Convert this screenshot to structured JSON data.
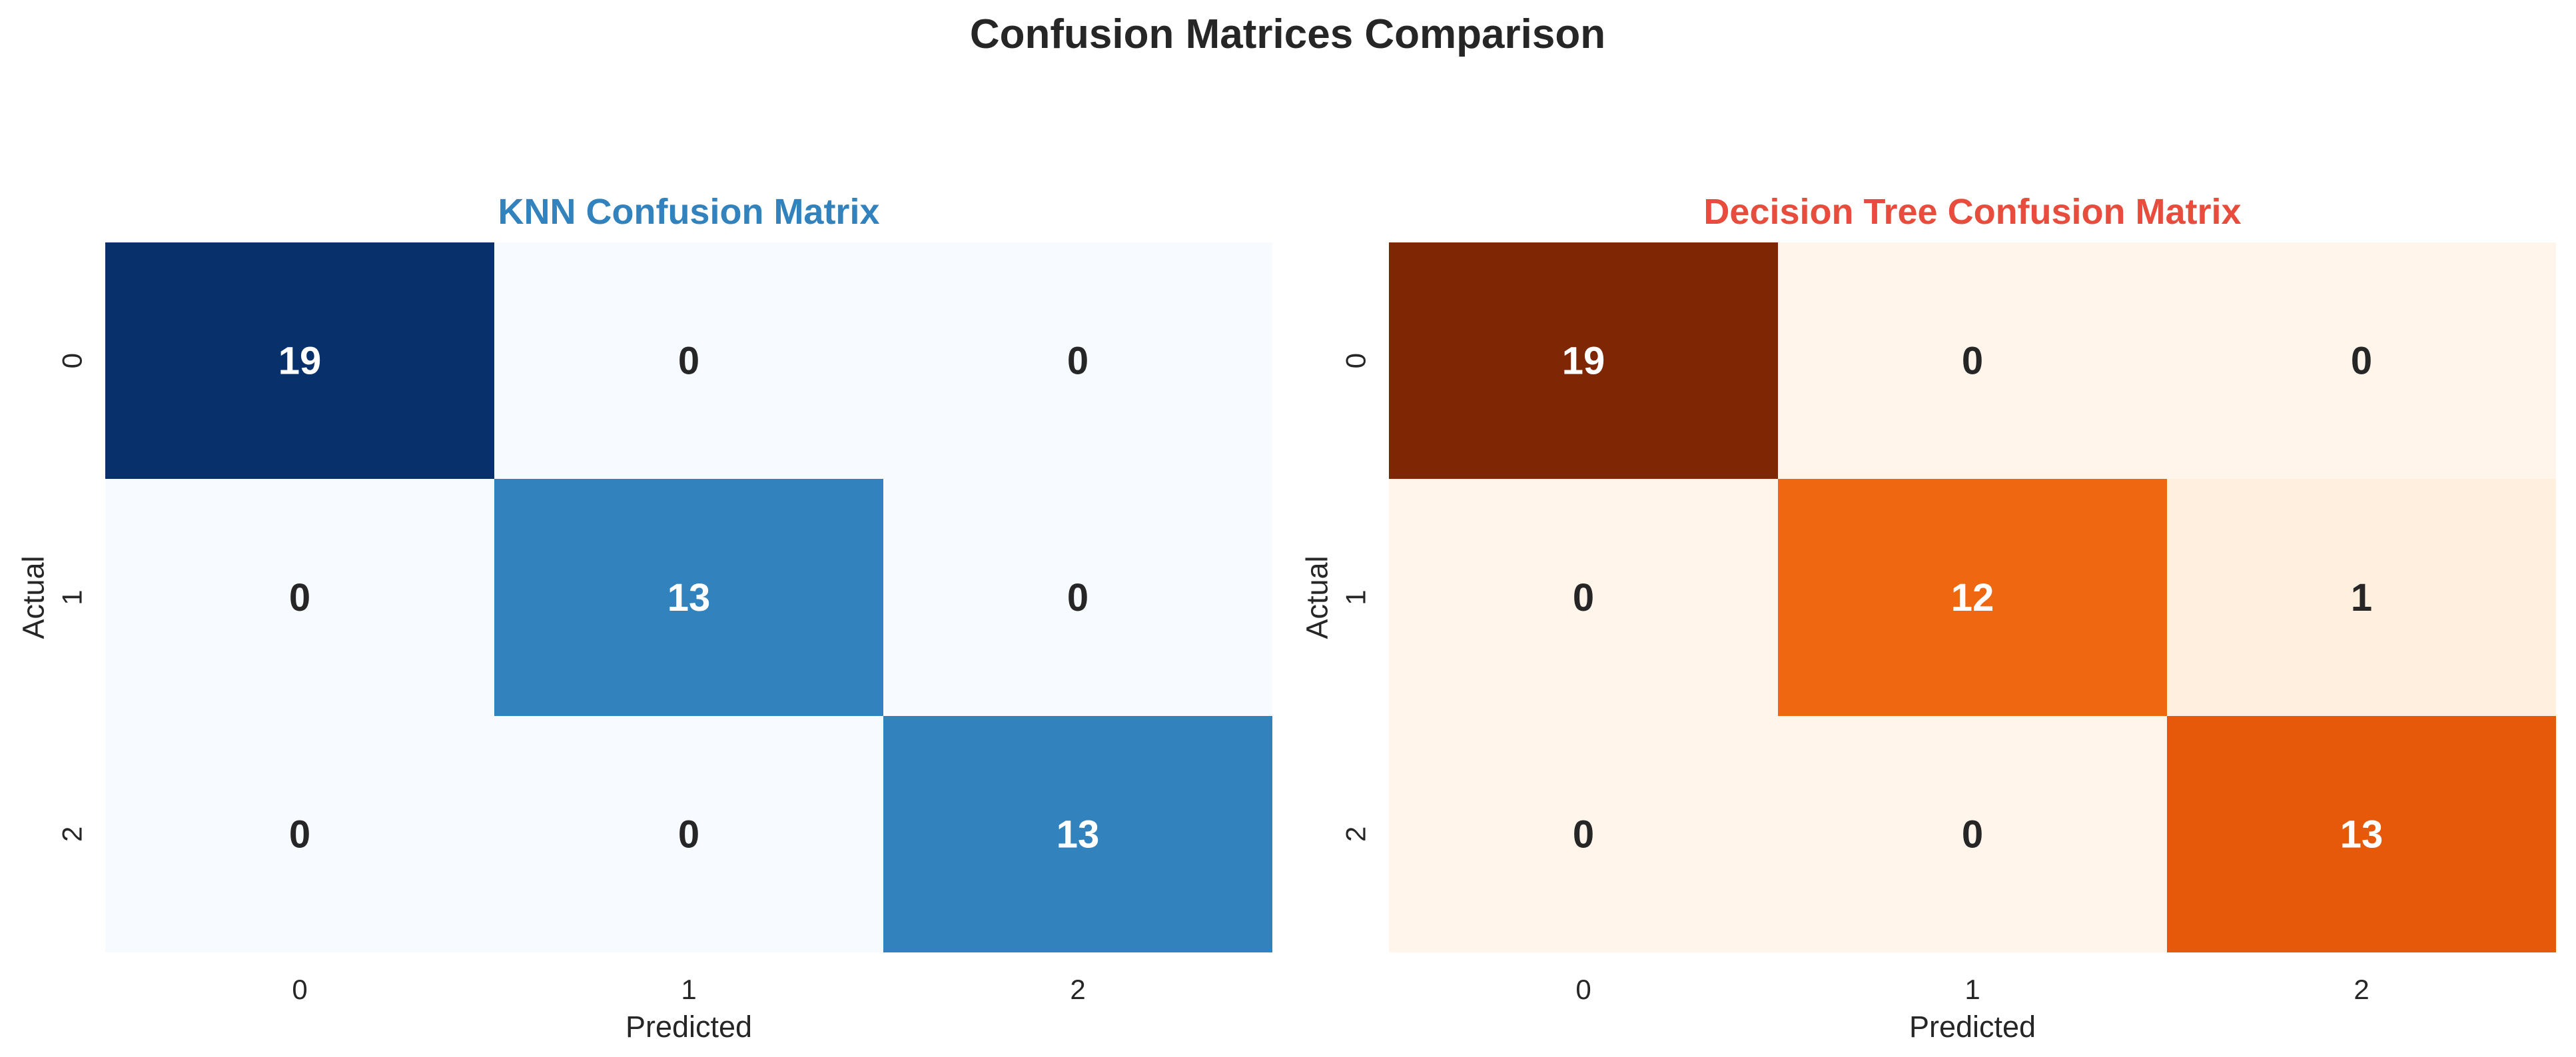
{
  "figure": {
    "suptitle": "Confusion Matrices Comparison"
  },
  "chart_data": [
    {
      "type": "heatmap",
      "title": "KNN Confusion Matrix",
      "title_color": "#3182bd",
      "xlabel": "Predicted",
      "ylabel": "Actual",
      "x_tick_labels": [
        "0",
        "1",
        "2"
      ],
      "y_tick_labels": [
        "0",
        "1",
        "2"
      ],
      "matrix": [
        [
          19,
          0,
          0
        ],
        [
          0,
          13,
          0
        ],
        [
          0,
          0,
          13
        ]
      ],
      "colormap": "Blues",
      "colormap_stops": [
        "#f7fbff",
        "#deebf7",
        "#c6dbef",
        "#9ecae1",
        "#6baed6",
        "#4292c6",
        "#2171b5",
        "#08519c",
        "#08306b"
      ],
      "colorbar": false,
      "annotations": true
    },
    {
      "type": "heatmap",
      "title": "Decision Tree Confusion Matrix",
      "title_color": "#e74c3c",
      "xlabel": "Predicted",
      "ylabel": "Actual",
      "x_tick_labels": [
        "0",
        "1",
        "2"
      ],
      "y_tick_labels": [
        "0",
        "1",
        "2"
      ],
      "matrix": [
        [
          19,
          0,
          0
        ],
        [
          0,
          12,
          1
        ],
        [
          0,
          0,
          13
        ]
      ],
      "colormap": "Oranges",
      "colormap_stops": [
        "#fff5eb",
        "#fee6ce",
        "#fdd0a2",
        "#fdae6b",
        "#fd8d3c",
        "#f16913",
        "#d94801",
        "#a63603",
        "#7f2704"
      ],
      "colorbar": false,
      "annotations": true
    }
  ]
}
